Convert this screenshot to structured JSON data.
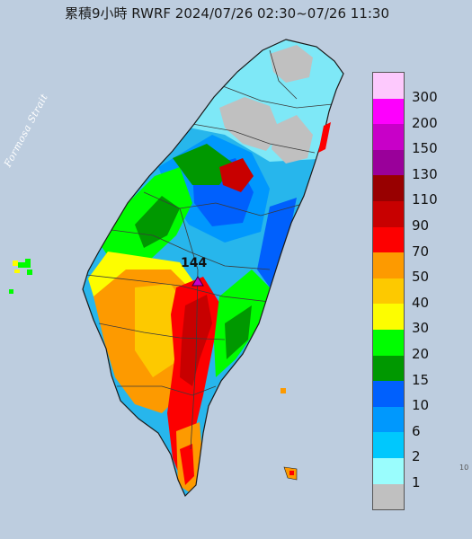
{
  "title": "累積9小時 RWRF 2024/07/26 02:30~07/26 11:30",
  "sea_label": "Formosa Strait",
  "peak_value": "144",
  "edge_mark": "10",
  "colors": {
    "sea": "#b9c9dc",
    "land_base": "#27b6ec"
  },
  "legend": [
    {
      "label": "300",
      "color": "#fdc9fd"
    },
    {
      "label": "200",
      "color": "#fd00fd"
    },
    {
      "label": "150",
      "color": "#c800c8"
    },
    {
      "label": "130",
      "color": "#9a009a"
    },
    {
      "label": "110",
      "color": "#980000"
    },
    {
      "label": "90",
      "color": "#c80000"
    },
    {
      "label": "70",
      "color": "#fd0000"
    },
    {
      "label": "50",
      "color": "#fd9a00"
    },
    {
      "label": "40",
      "color": "#fdc900"
    },
    {
      "label": "30",
      "color": "#fdfd00"
    },
    {
      "label": "20",
      "color": "#00fd00"
    },
    {
      "label": "15",
      "color": "#009800"
    },
    {
      "label": "10",
      "color": "#0060fd"
    },
    {
      "label": "6",
      "color": "#0098fd"
    },
    {
      "label": "2",
      "color": "#00c8fd"
    },
    {
      "label": "1",
      "color": "#9afdfd"
    },
    {
      "label": "",
      "color": "#c0c0c0"
    }
  ]
}
